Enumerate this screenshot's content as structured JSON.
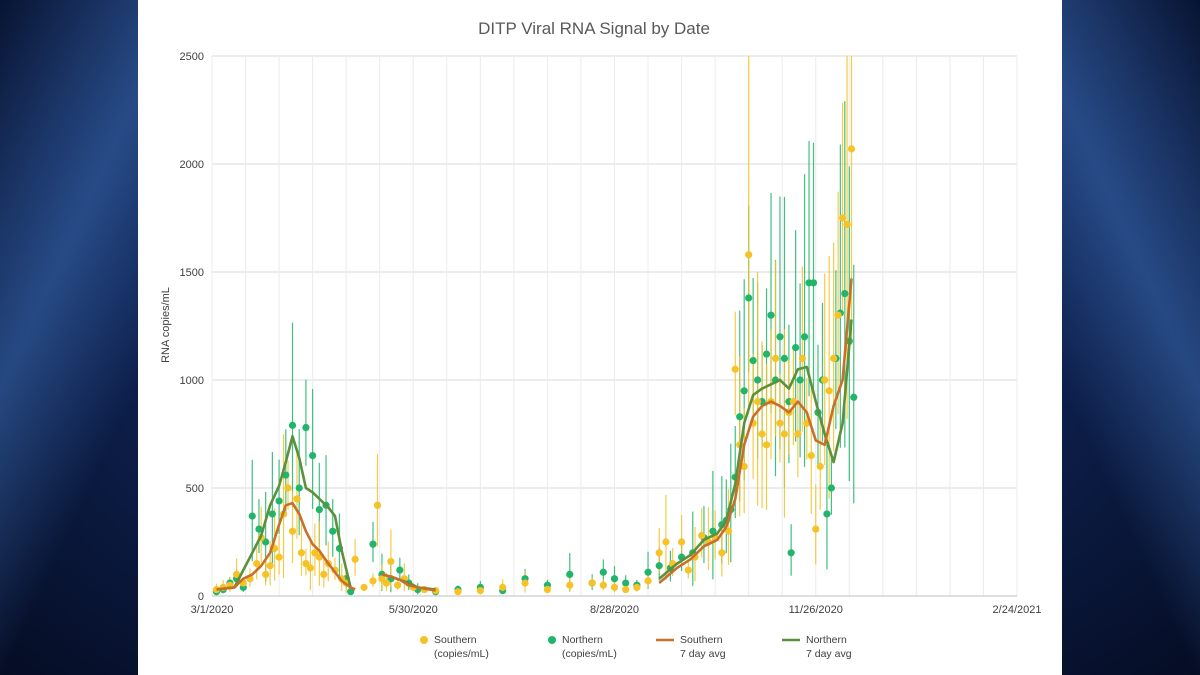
{
  "colors": {
    "southern": "#f5c227",
    "northern": "#21b46a",
    "southern_avg": "#c8702a",
    "northern_avg": "#5d8f3c",
    "grid": "#d9d9d9"
  },
  "chart_data": {
    "type": "scatter",
    "title": "DITP Viral RNA Signal by Date",
    "xlabel": "",
    "ylabel": "RNA copies/mL",
    "ylim": [
      0,
      2500
    ],
    "yticks": [
      "0",
      "500",
      "1000",
      "1500",
      "2000",
      "2500"
    ],
    "xticks": [
      "3/1/2020",
      "5/30/2020",
      "8/28/2020",
      "11/26/2020",
      "2/24/2021"
    ],
    "xlim_days": [
      0,
      360
    ],
    "grid": true,
    "legend_position": "bottom",
    "legend": [
      {
        "line1": "Southern",
        "line2": "(copies/mL)",
        "kind": "dot",
        "series": "southern"
      },
      {
        "line1": "Northern",
        "line2": "(copies/mL)",
        "kind": "dot",
        "series": "northern"
      },
      {
        "line1": "Southern",
        "line2": "7 day avg",
        "kind": "line",
        "series": "southern_avg"
      },
      {
        "line1": "Northern",
        "line2": "7 day avg",
        "kind": "line",
        "series": "northern_avg"
      }
    ],
    "series": [
      {
        "name": "Southern (copies/mL)",
        "points": [
          [
            2,
            30
          ],
          [
            5,
            40
          ],
          [
            8,
            50
          ],
          [
            11,
            100
          ],
          [
            14,
            60
          ],
          [
            17,
            80
          ],
          [
            20,
            150
          ],
          [
            22,
            270
          ],
          [
            24,
            100
          ],
          [
            26,
            140
          ],
          [
            28,
            220
          ],
          [
            30,
            180
          ],
          [
            32,
            380
          ],
          [
            34,
            500
          ],
          [
            36,
            300
          ],
          [
            38,
            450
          ],
          [
            40,
            200
          ],
          [
            42,
            150
          ],
          [
            44,
            130
          ],
          [
            46,
            200
          ],
          [
            48,
            180
          ],
          [
            50,
            100
          ],
          [
            52,
            150
          ],
          [
            55,
            120
          ],
          [
            58,
            80
          ],
          [
            60,
            60
          ],
          [
            64,
            170
          ],
          [
            68,
            40
          ],
          [
            72,
            70
          ],
          [
            74,
            420
          ],
          [
            76,
            80
          ],
          [
            78,
            60
          ],
          [
            80,
            160
          ],
          [
            83,
            50
          ],
          [
            86,
            80
          ],
          [
            90,
            40
          ],
          [
            95,
            30
          ],
          [
            100,
            25
          ],
          [
            110,
            20
          ],
          [
            120,
            25
          ],
          [
            130,
            40
          ],
          [
            140,
            60
          ],
          [
            150,
            30
          ],
          [
            160,
            50
          ],
          [
            170,
            60
          ],
          [
            175,
            50
          ],
          [
            180,
            40
          ],
          [
            185,
            30
          ],
          [
            190,
            40
          ],
          [
            195,
            70
          ],
          [
            200,
            200
          ],
          [
            203,
            250
          ],
          [
            206,
            150
          ],
          [
            210,
            250
          ],
          [
            213,
            120
          ],
          [
            216,
            180
          ],
          [
            219,
            280
          ],
          [
            222,
            250
          ],
          [
            225,
            270
          ],
          [
            228,
            200
          ],
          [
            231,
            300
          ],
          [
            234,
            1050
          ],
          [
            236,
            700
          ],
          [
            238,
            600
          ],
          [
            240,
            1580
          ],
          [
            242,
            800
          ],
          [
            244,
            900
          ],
          [
            246,
            750
          ],
          [
            248,
            700
          ],
          [
            250,
            900
          ],
          [
            252,
            1100
          ],
          [
            254,
            800
          ],
          [
            256,
            750
          ],
          [
            258,
            850
          ],
          [
            260,
            900
          ],
          [
            262,
            750
          ],
          [
            264,
            1100
          ],
          [
            266,
            800
          ],
          [
            268,
            650
          ],
          [
            270,
            310
          ],
          [
            272,
            600
          ],
          [
            274,
            1000
          ],
          [
            276,
            950
          ],
          [
            278,
            1100
          ],
          [
            280,
            1300
          ],
          [
            282,
            1750
          ],
          [
            284,
            1720
          ],
          [
            286,
            2070
          ]
        ]
      },
      {
        "name": "Northern (copies/mL)",
        "points": [
          [
            2,
            20
          ],
          [
            5,
            30
          ],
          [
            8,
            60
          ],
          [
            11,
            80
          ],
          [
            14,
            40
          ],
          [
            18,
            370
          ],
          [
            21,
            310
          ],
          [
            24,
            250
          ],
          [
            27,
            380
          ],
          [
            30,
            440
          ],
          [
            33,
            560
          ],
          [
            36,
            790
          ],
          [
            39,
            500
          ],
          [
            42,
            780
          ],
          [
            45,
            650
          ],
          [
            48,
            400
          ],
          [
            51,
            420
          ],
          [
            54,
            300
          ],
          [
            57,
            220
          ],
          [
            60,
            80
          ],
          [
            62,
            20
          ],
          [
            72,
            240
          ],
          [
            76,
            100
          ],
          [
            80,
            80
          ],
          [
            84,
            120
          ],
          [
            88,
            60
          ],
          [
            92,
            30
          ],
          [
            100,
            20
          ],
          [
            110,
            30
          ],
          [
            120,
            40
          ],
          [
            130,
            25
          ],
          [
            140,
            80
          ],
          [
            150,
            50
          ],
          [
            160,
            100
          ],
          [
            170,
            60
          ],
          [
            175,
            110
          ],
          [
            180,
            80
          ],
          [
            185,
            60
          ],
          [
            190,
            50
          ],
          [
            195,
            110
          ],
          [
            200,
            140
          ],
          [
            205,
            130
          ],
          [
            210,
            180
          ],
          [
            215,
            200
          ],
          [
            220,
            270
          ],
          [
            224,
            300
          ],
          [
            228,
            330
          ],
          [
            230,
            350
          ],
          [
            232,
            400
          ],
          [
            234,
            550
          ],
          [
            236,
            830
          ],
          [
            238,
            950
          ],
          [
            240,
            1380
          ],
          [
            242,
            1090
          ],
          [
            244,
            1000
          ],
          [
            246,
            900
          ],
          [
            248,
            1120
          ],
          [
            250,
            1300
          ],
          [
            252,
            1000
          ],
          [
            254,
            1200
          ],
          [
            256,
            1100
          ],
          [
            258,
            900
          ],
          [
            259,
            200
          ],
          [
            261,
            1150
          ],
          [
            263,
            1000
          ],
          [
            265,
            1200
          ],
          [
            267,
            1450
          ],
          [
            269,
            1450
          ],
          [
            271,
            850
          ],
          [
            273,
            1000
          ],
          [
            275,
            380
          ],
          [
            277,
            500
          ],
          [
            279,
            1100
          ],
          [
            281,
            1310
          ],
          [
            283,
            1400
          ],
          [
            285,
            1180
          ],
          [
            287,
            920
          ]
        ]
      },
      {
        "name": "Southern 7 day avg",
        "points": [
          [
            2,
            30
          ],
          [
            6,
            35
          ],
          [
            10,
            40
          ],
          [
            14,
            80
          ],
          [
            18,
            100
          ],
          [
            22,
            140
          ],
          [
            26,
            200
          ],
          [
            30,
            330
          ],
          [
            33,
            420
          ],
          [
            36,
            430
          ],
          [
            39,
            380
          ],
          [
            42,
            300
          ],
          [
            45,
            240
          ],
          [
            48,
            210
          ],
          [
            52,
            150
          ],
          [
            55,
            110
          ],
          [
            58,
            70
          ],
          [
            62,
            40
          ],
          [
            64,
            30
          ],
          [
            76,
            100
          ],
          [
            80,
            90
          ],
          [
            84,
            75
          ],
          [
            88,
            50
          ],
          [
            92,
            40
          ],
          [
            100,
            25
          ],
          [
            115,
            25
          ],
          [
            130,
            30
          ],
          [
            145,
            40
          ],
          [
            160,
            55
          ],
          [
            175,
            60
          ],
          [
            190,
            50
          ],
          [
            200,
            60
          ],
          [
            208,
            130
          ],
          [
            214,
            170
          ],
          [
            220,
            230
          ],
          [
            226,
            260
          ],
          [
            230,
            320
          ],
          [
            234,
            450
          ],
          [
            238,
            700
          ],
          [
            242,
            830
          ],
          [
            246,
            880
          ],
          [
            250,
            900
          ],
          [
            254,
            880
          ],
          [
            258,
            850
          ],
          [
            262,
            900
          ],
          [
            266,
            850
          ],
          [
            270,
            720
          ],
          [
            274,
            700
          ],
          [
            278,
            880
          ],
          [
            282,
            1000
          ],
          [
            286,
            1470
          ]
        ]
      },
      {
        "name": "Northern 7 day avg",
        "points": [
          [
            2,
            30
          ],
          [
            6,
            35
          ],
          [
            10,
            40
          ],
          [
            14,
            120
          ],
          [
            18,
            200
          ],
          [
            22,
            280
          ],
          [
            26,
            420
          ],
          [
            30,
            510
          ],
          [
            33,
            620
          ],
          [
            36,
            740
          ],
          [
            39,
            640
          ],
          [
            42,
            500
          ],
          [
            45,
            480
          ],
          [
            48,
            450
          ],
          [
            52,
            410
          ],
          [
            55,
            370
          ],
          [
            58,
            210
          ],
          [
            62,
            40
          ],
          [
            64,
            30
          ],
          [
            76,
            100
          ],
          [
            80,
            90
          ],
          [
            84,
            75
          ],
          [
            88,
            60
          ],
          [
            92,
            40
          ],
          [
            100,
            30
          ],
          [
            115,
            30
          ],
          [
            130,
            35
          ],
          [
            145,
            45
          ],
          [
            160,
            60
          ],
          [
            175,
            70
          ],
          [
            190,
            60
          ],
          [
            200,
            80
          ],
          [
            208,
            150
          ],
          [
            214,
            190
          ],
          [
            220,
            260
          ],
          [
            226,
            290
          ],
          [
            230,
            350
          ],
          [
            234,
            520
          ],
          [
            238,
            800
          ],
          [
            242,
            930
          ],
          [
            246,
            960
          ],
          [
            250,
            980
          ],
          [
            254,
            1000
          ],
          [
            258,
            960
          ],
          [
            262,
            1050
          ],
          [
            266,
            1060
          ],
          [
            270,
            900
          ],
          [
            274,
            750
          ],
          [
            278,
            620
          ],
          [
            282,
            800
          ],
          [
            286,
            1280
          ]
        ]
      }
    ]
  }
}
